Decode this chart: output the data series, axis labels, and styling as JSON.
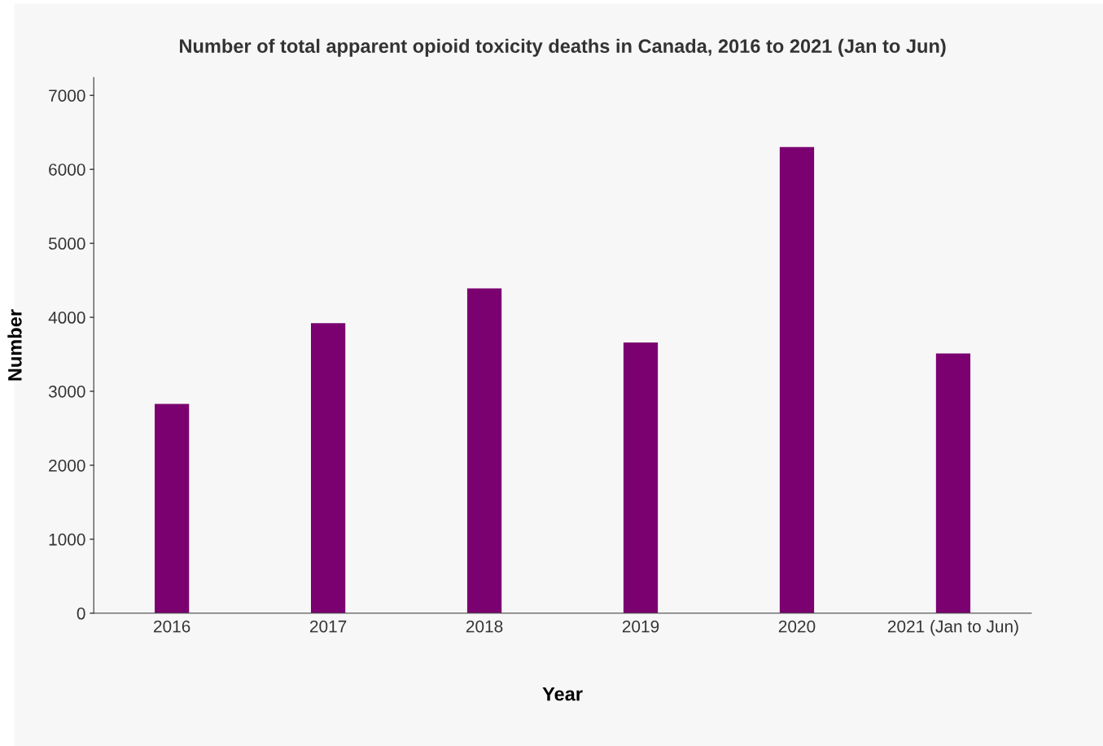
{
  "chart_data": {
    "type": "bar",
    "title": "Number of total apparent opioid toxicity deaths in Canada, 2016 to 2021 (Jan to Jun)",
    "xlabel": "Year",
    "ylabel": "Number",
    "categories": [
      "2016",
      "2017",
      "2018",
      "2019",
      "2020",
      "2021 (Jan to Jun)"
    ],
    "values": [
      2830,
      3920,
      4390,
      3660,
      6300,
      3510
    ],
    "color": "#7b0070",
    "ylim": [
      0,
      7240
    ],
    "yticks": [
      0,
      1000,
      2000,
      3000,
      4000,
      5000,
      6000,
      7000
    ],
    "grid": false,
    "legend": false
  }
}
